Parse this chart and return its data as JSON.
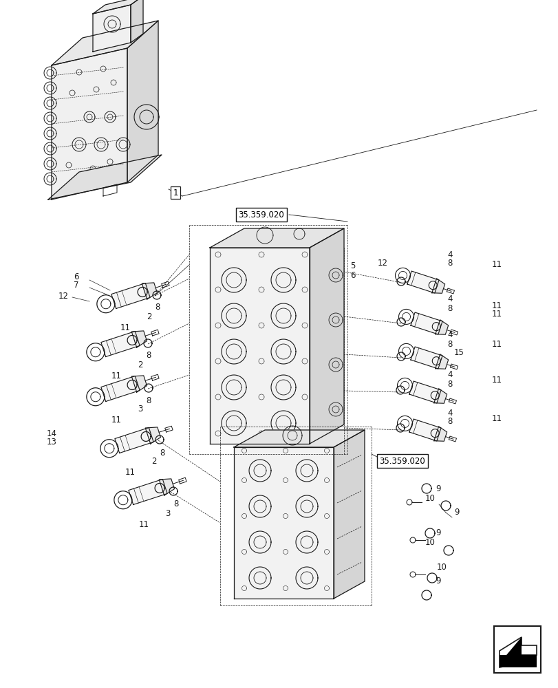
{
  "bg": "#ffffff",
  "lc": "#1a1a1a",
  "fig_w": 8.12,
  "fig_h": 10.0,
  "dpi": 100,
  "ref_label": "35.359.020",
  "part1_label": "1"
}
